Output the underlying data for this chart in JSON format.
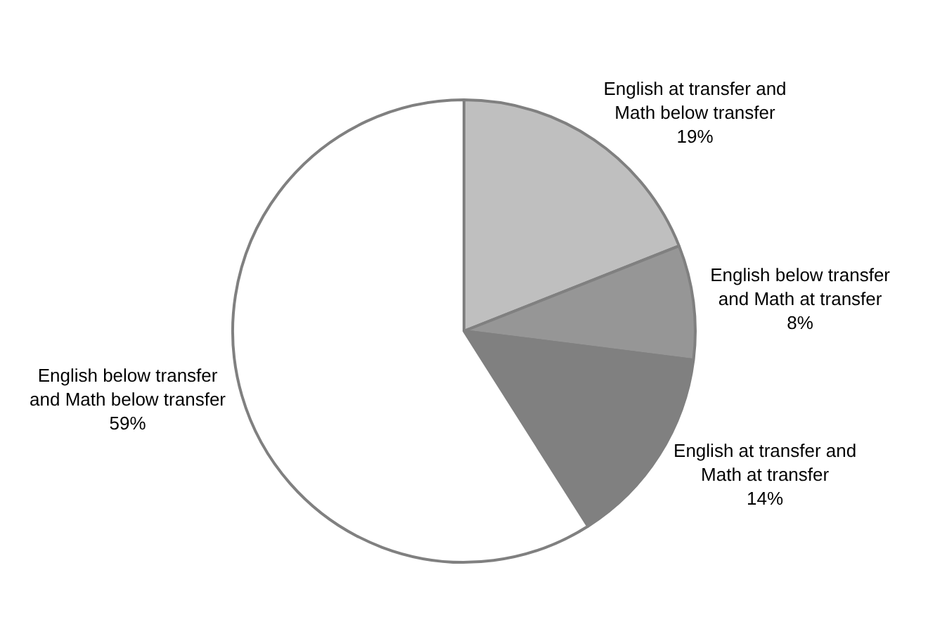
{
  "chart_data": {
    "type": "pie",
    "categories": [
      "English at transfer and Math below transfer",
      "English below transfer and Math at transfer",
      "English at transfer and Math at transfer",
      "English below transfer and Math below transfer"
    ],
    "values": [
      19,
      8,
      14,
      59
    ],
    "value_labels": [
      "19%",
      "8%",
      "14%",
      "59%"
    ],
    "colors": [
      "#bfbfbf",
      "#969696",
      "#808080",
      "#ffffff"
    ],
    "legend": false
  }
}
